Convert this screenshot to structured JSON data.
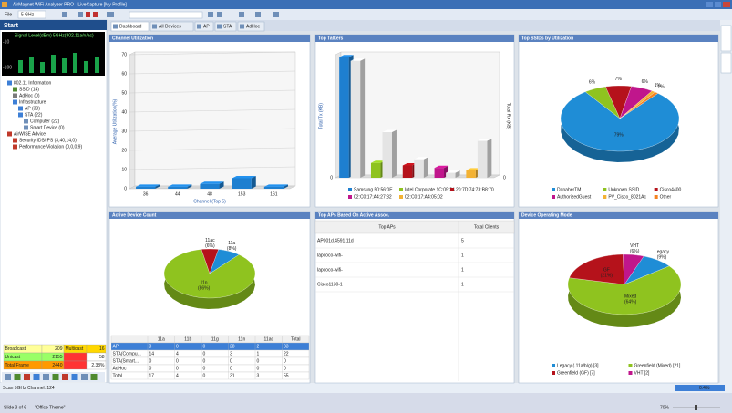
{
  "title_bar": {
    "title": "AirMagnet WiFi Analyzer PRO - LiveCapture [My Profile]"
  },
  "toolbar": {
    "menu": "File",
    "band": "5 GHz"
  },
  "tabs": [
    "Dashboard",
    "All Devices",
    "AP",
    "STA",
    "AdHoc"
  ],
  "left_panel": {
    "title": "Start",
    "signal_label": "Signal Level(dBm)",
    "band_label": "5GHz(802.11a/n/ac)",
    "signal_ticks": [
      "-10",
      "-100"
    ],
    "tree": [
      "802.11 Information",
      "SSID (14)",
      "AdHoc (0)",
      "Infrastructure",
      "AP (33)",
      "STA (22)",
      "Computer (22)",
      "Smart Device (0)",
      "AirWISE Advice",
      "Security IDS/IPS (3,40,14,0)",
      "Performance Violation (0,0,0,9)"
    ],
    "stats": [
      [
        "Broadcast",
        "209",
        "Multicast",
        "16"
      ],
      [
        "Unicast",
        "2155",
        "58"
      ],
      [
        "Total Frame",
        "2440",
        "2.38%"
      ]
    ]
  },
  "panels": [
    {
      "title": "Channel Utilization",
      "chart": {
        "type": "bar",
        "categories": [
          "36",
          "44",
          "48",
          "153",
          "161"
        ],
        "values": [
          1,
          1,
          2.5,
          5.5,
          1
        ],
        "color": "#1e7fd0",
        "ylim": [
          0,
          70
        ],
        "yticks": [
          0,
          10,
          20,
          30,
          40,
          50,
          60,
          70
        ],
        "grid": true,
        "ylabel": "Average Utilization(%)",
        "xlabel": "Channel (Top 5)"
      }
    },
    {
      "title": "Top Talkers",
      "chart": {
        "type": "bar",
        "categories": [
          "Samsung 50:56:0E",
          "Intel Corporate 1C:09:24",
          "20:7D:74:73:B8:70",
          "02:C0:17:A4:27:32",
          "02:C0:17:A4:05:02"
        ],
        "colors": [
          "#1e7fd0",
          "#8fc31f",
          "#b5121b",
          "#c0168c",
          "#f3b234"
        ],
        "series": [
          {
            "name": "Total Tx (KB)",
            "values": [
              98,
              12,
              10,
              8,
              6
            ]
          },
          {
            "name": "Total Rx (KB)",
            "color": "#e4e4e4",
            "axis": "y2",
            "values": [
              95,
              37,
              15,
              4,
              30
            ]
          }
        ],
        "ylim": [
          0,
          100
        ],
        "yticks": [
          0
        ],
        "y2lim": [
          0,
          100
        ],
        "y2ticks": [
          0
        ],
        "legend": "bottom"
      }
    },
    {
      "title": "Top SSIDs by Utilization",
      "chart": {
        "type": "pie",
        "categories": [
          "DanaherTM",
          "Unknown SSID",
          "Cisco4400",
          "AuthorizedGuest",
          "PV_Cisco_8021Ac",
          "Other"
        ],
        "values": [
          79,
          6,
          7,
          6,
          1,
          1
        ],
        "value_labels": [
          "79%",
          "6%",
          "7%",
          "6%",
          "1%",
          "1%"
        ],
        "colors": [
          "#1f8dd6",
          "#8fc31f",
          "#b5121b",
          "#c0168c",
          "#f3b234",
          "#f58220"
        ],
        "legend": "bottom"
      }
    },
    {
      "title": "Active Device Count",
      "chart": {
        "type": "pie",
        "categories": [
          "11n",
          "11ac",
          "11a"
        ],
        "values": [
          86,
          6,
          8
        ],
        "value_labels": [
          "(86%)",
          "(6%)",
          "(8%)"
        ],
        "colors": [
          "#8fc31f",
          "#b5121b",
          "#1f8dd6"
        ]
      },
      "table": {
        "header": [
          "11a",
          "11b",
          "11g",
          "11n",
          "11ac",
          "Total"
        ],
        "rows": [
          [
            "AP",
            "3",
            "0",
            "0",
            "28",
            "2",
            "33"
          ],
          [
            "STA(Compu...",
            "14",
            "4",
            "0",
            "3",
            "1",
            "22"
          ],
          [
            "STA(Smart...",
            "0",
            "0",
            "0",
            "0",
            "0",
            "0"
          ],
          [
            "AdHoc",
            "0",
            "0",
            "0",
            "0",
            "0",
            "0"
          ],
          [
            "Total",
            "17",
            "4",
            "0",
            "31",
            "3",
            "55"
          ]
        ]
      }
    },
    {
      "title": "Top APs Based On Active Assoc.",
      "table": {
        "header": [
          "Top APs",
          "Total Clients"
        ],
        "rows": [
          [
            "AP001d.4591.11d",
            "5"
          ],
          [
            "lapcoco-wifi-",
            "1"
          ],
          [
            "lapcoco-wifi-",
            "1"
          ],
          [
            "Cisco1130-1",
            "1"
          ]
        ]
      }
    },
    {
      "title": "Device Operating Mode",
      "chart": {
        "type": "pie",
        "categories": [
          "Legacy (.11a/b/g) [3]",
          "Greenfield (Mixed) [21]",
          "Greenfield (GF) [7]",
          "VHT [2]"
        ],
        "slice_names": [
          "Legacy",
          "Mixed",
          "GF",
          "VHT"
        ],
        "values": [
          9,
          64,
          21,
          6
        ],
        "value_labels": [
          "(9%)",
          "(64%)",
          "(21%)",
          "(6%)"
        ],
        "colors": [
          "#1f8dd6",
          "#8fc31f",
          "#b5121b",
          "#c0168c"
        ],
        "legend": "bottom"
      }
    }
  ],
  "status": {
    "scan": "Scan 5GHz Channel: 124",
    "progress": "0.4%",
    "slide": "Slide 3 of 6",
    "theme": "\"Office Theme\"",
    "zoom": "70%"
  }
}
